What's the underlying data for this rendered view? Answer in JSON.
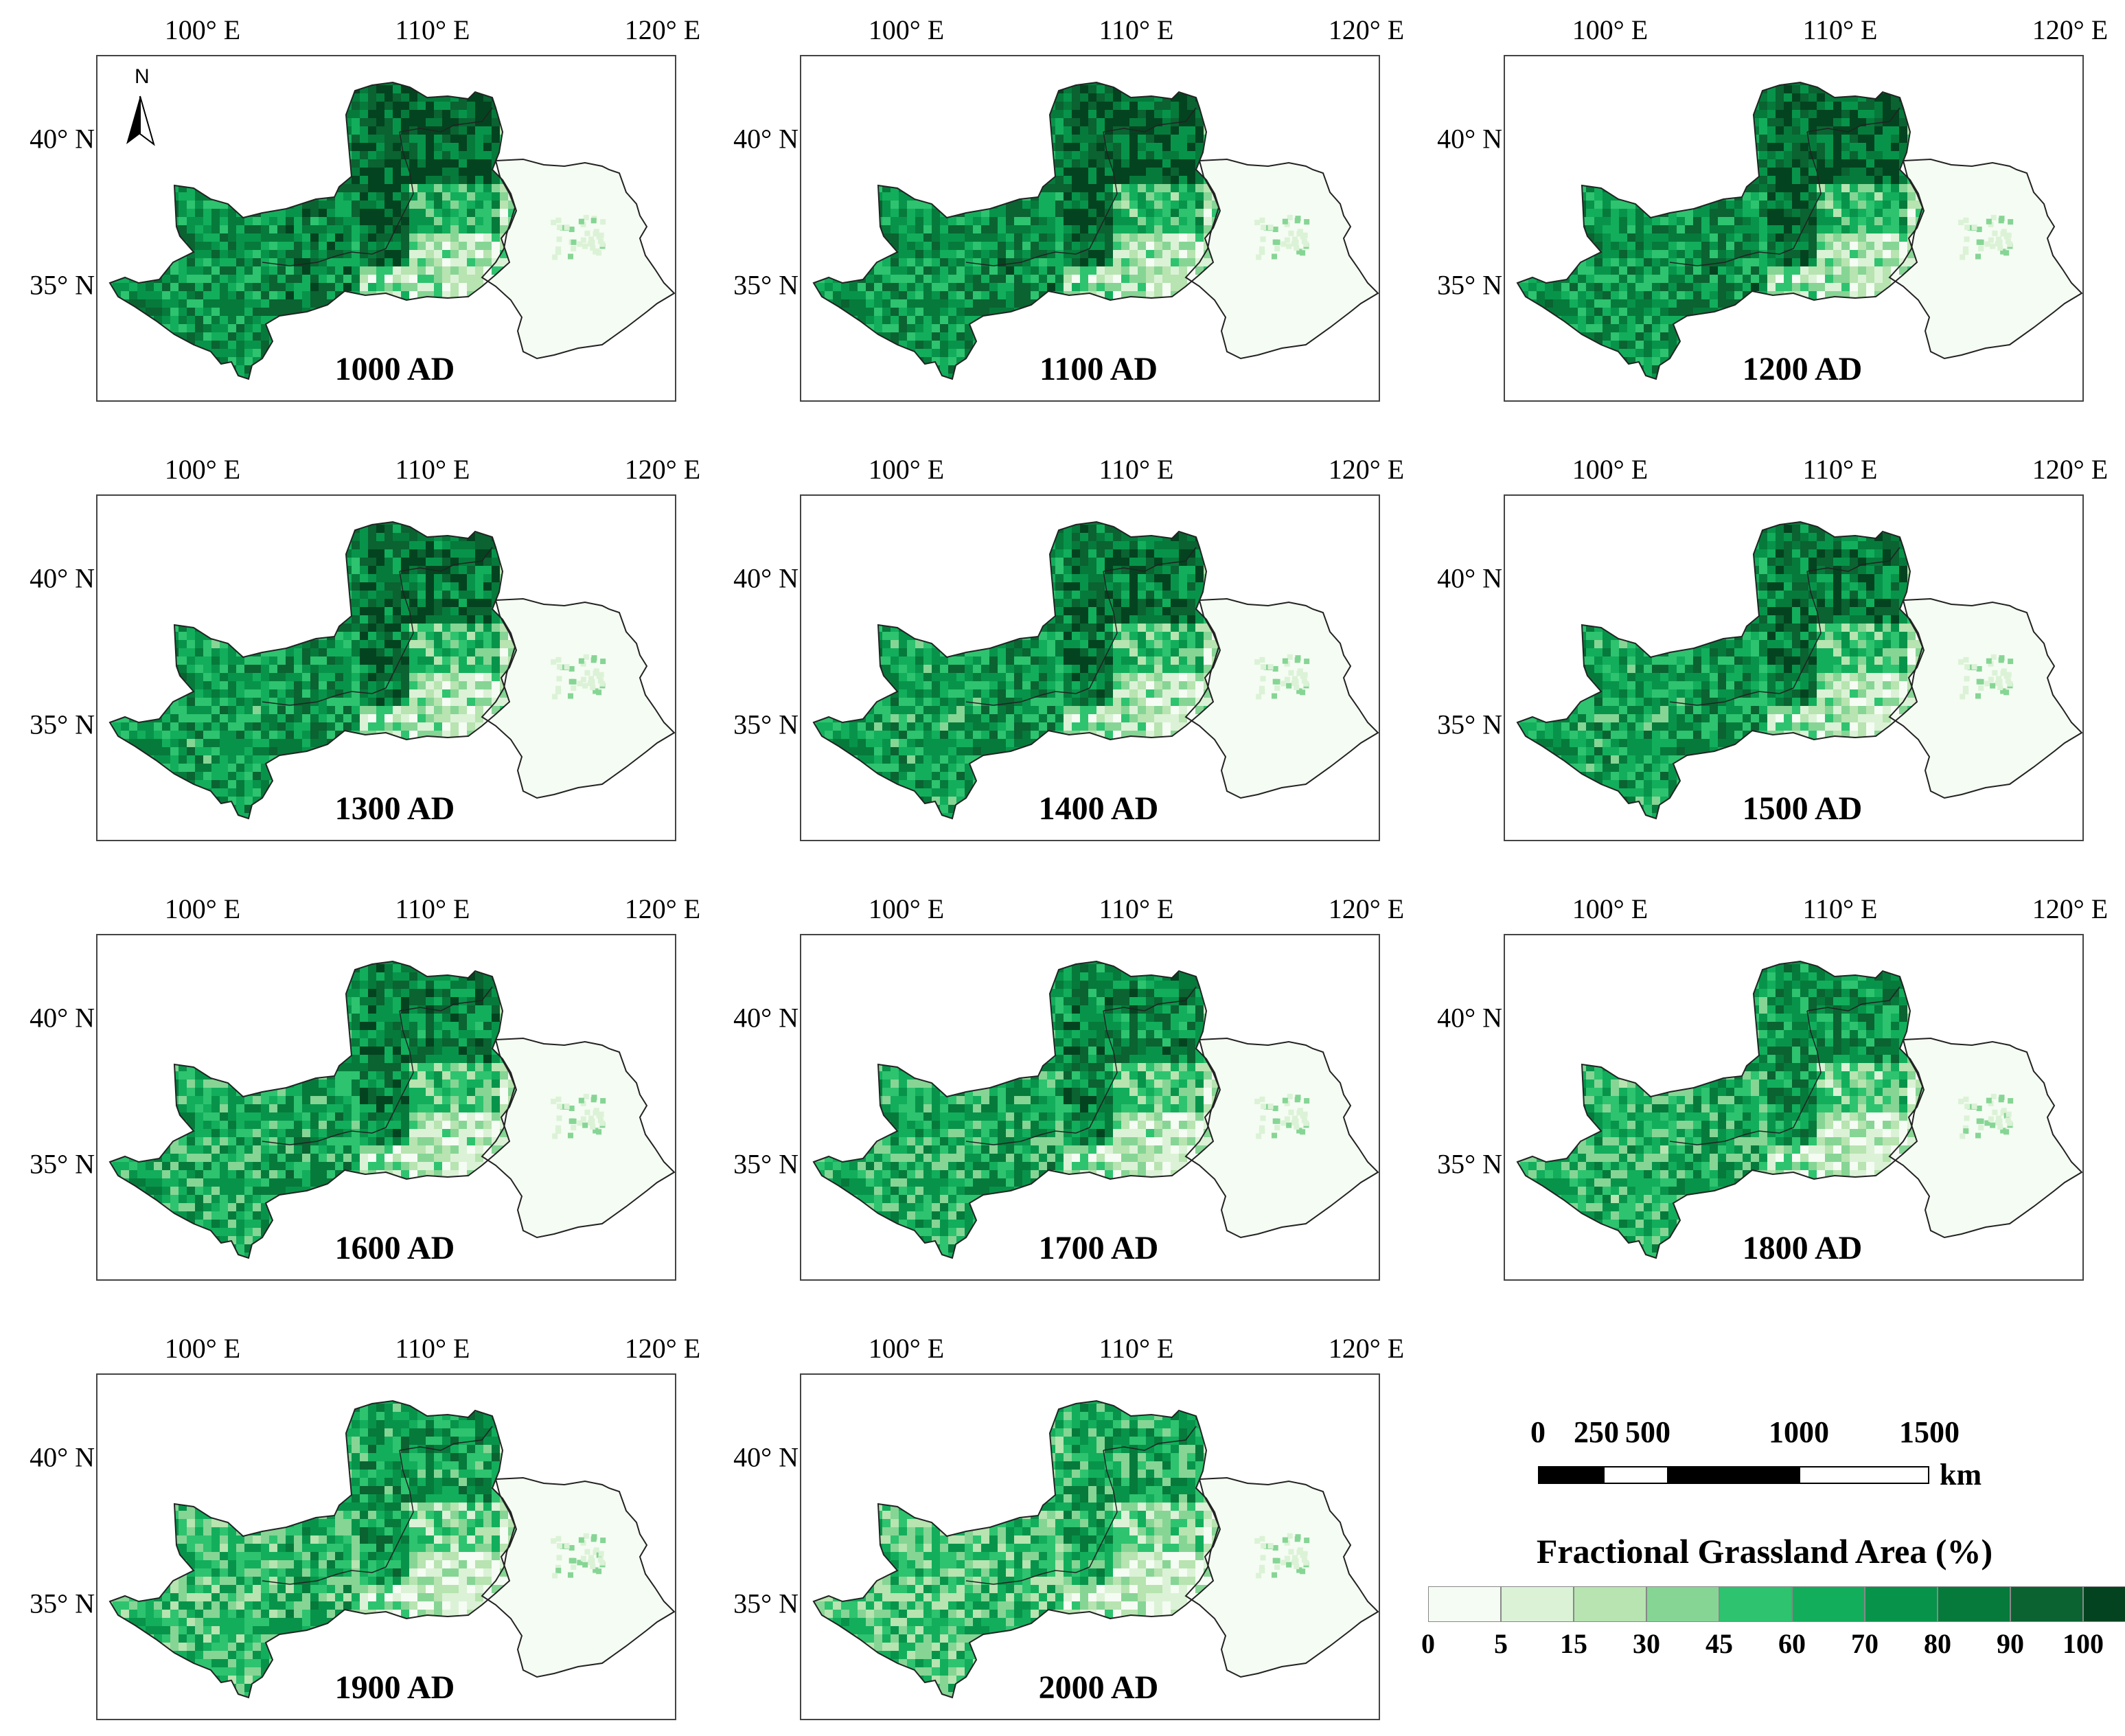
{
  "axes": {
    "x_ticks": [
      "100° E",
      "110° E",
      "120° E"
    ],
    "y_ticks": [
      "40° N",
      "35° N"
    ]
  },
  "north_arrow": {
    "label": "N",
    "icon": "north-arrow-icon"
  },
  "panels": [
    {
      "year": "1000 AD",
      "intensity": 0.95,
      "east_patch": 0.15
    },
    {
      "year": "1100 AD",
      "intensity": 0.93,
      "east_patch": 0.2
    },
    {
      "year": "1200 AD",
      "intensity": 0.92,
      "east_patch": 0.2
    },
    {
      "year": "1300 AD",
      "intensity": 0.88,
      "east_patch": 0.2
    },
    {
      "year": "1400 AD",
      "intensity": 0.86,
      "east_patch": 0.25
    },
    {
      "year": "1500 AD",
      "intensity": 0.85,
      "east_patch": 0.25
    },
    {
      "year": "1600 AD",
      "intensity": 0.8,
      "east_patch": 0.35
    },
    {
      "year": "1700 AD",
      "intensity": 0.78,
      "east_patch": 0.35
    },
    {
      "year": "1800 AD",
      "intensity": 0.74,
      "east_patch": 0.4
    },
    {
      "year": "1900 AD",
      "intensity": 0.68,
      "east_patch": 0.4
    },
    {
      "year": "2000 AD",
      "intensity": 0.62,
      "east_patch": 0.3
    }
  ],
  "scale_bar": {
    "labels": [
      "0",
      "250",
      "500",
      "1000",
      "1500"
    ],
    "unit": "km"
  },
  "legend": {
    "title": "Fractional Grassland Area (%)",
    "breaks": [
      "0",
      "5",
      "15",
      "30",
      "45",
      "60",
      "70",
      "80",
      "90",
      "100"
    ],
    "colors": [
      "#f5fcf3",
      "#dbf2d6",
      "#b7e4b0",
      "#86d595",
      "#2ec36f",
      "#12ae5c",
      "#07944a",
      "#067a3b",
      "#0a6331",
      "#04431f"
    ]
  }
}
